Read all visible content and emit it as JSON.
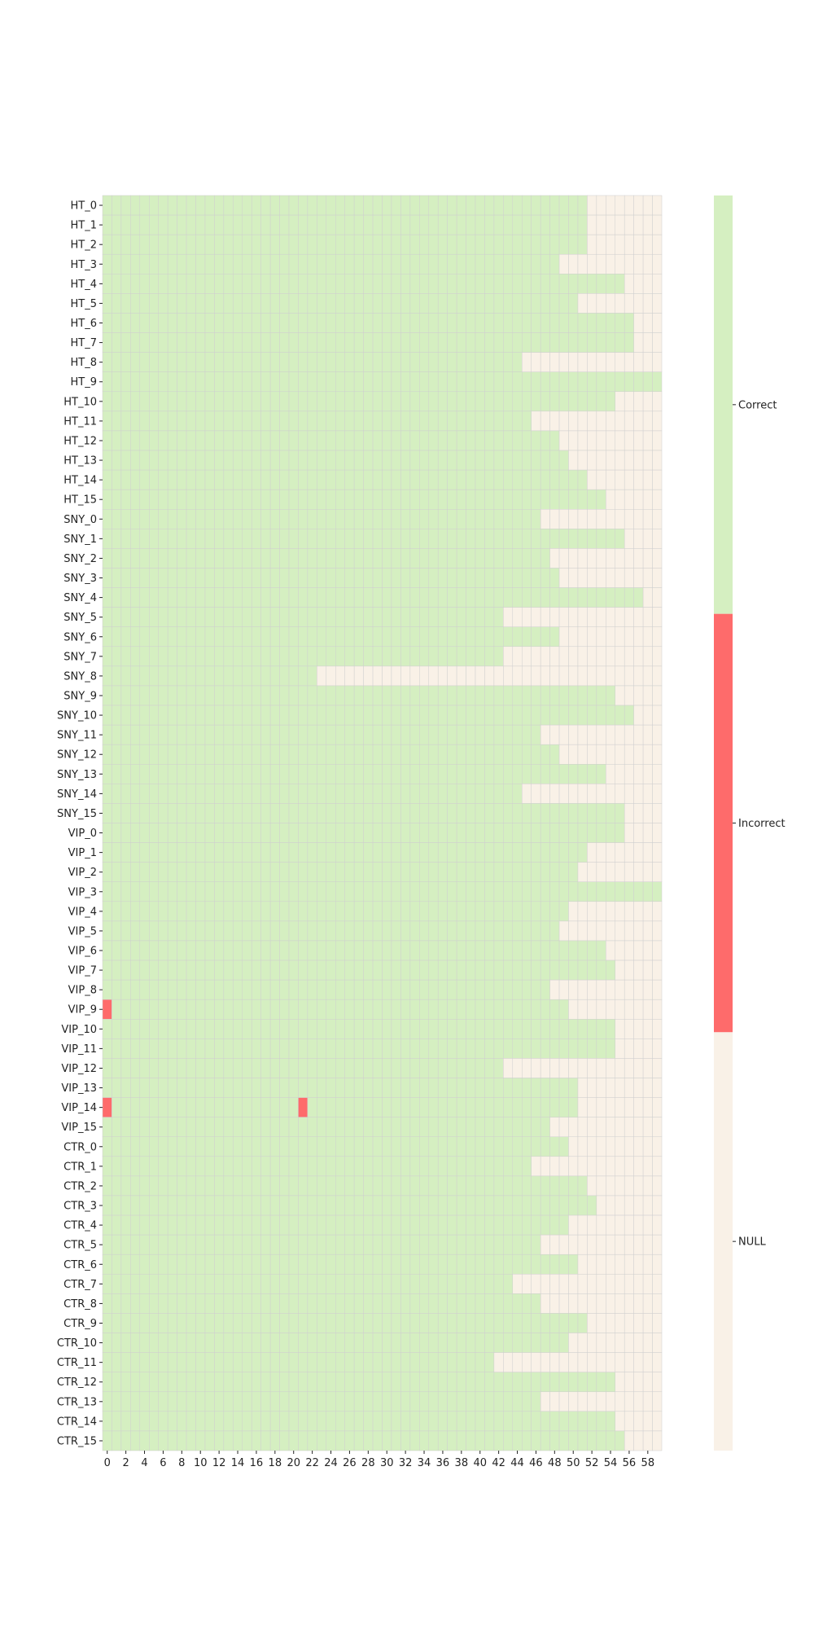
{
  "chart_data": {
    "type": "heatmap",
    "title": "",
    "xlabel": "",
    "ylabel": "",
    "x_count": 60,
    "x_tick_labels": [
      "0",
      "2",
      "4",
      "6",
      "8",
      "10",
      "12",
      "14",
      "16",
      "18",
      "20",
      "22",
      "24",
      "26",
      "28",
      "30",
      "32",
      "34",
      "36",
      "38",
      "40",
      "42",
      "44",
      "46",
      "48",
      "50",
      "52",
      "54",
      "56",
      "58"
    ],
    "rows": [
      "HT_0",
      "HT_1",
      "HT_2",
      "HT_3",
      "HT_4",
      "HT_5",
      "HT_6",
      "HT_7",
      "HT_8",
      "HT_9",
      "HT_10",
      "HT_11",
      "HT_12",
      "HT_13",
      "HT_14",
      "HT_15",
      "SNY_0",
      "SNY_1",
      "SNY_2",
      "SNY_3",
      "SNY_4",
      "SNY_5",
      "SNY_6",
      "SNY_7",
      "SNY_8",
      "SNY_9",
      "SNY_10",
      "SNY_11",
      "SNY_12",
      "SNY_13",
      "SNY_14",
      "SNY_15",
      "VIP_0",
      "VIP_1",
      "VIP_2",
      "VIP_3",
      "VIP_4",
      "VIP_5",
      "VIP_6",
      "VIP_7",
      "VIP_8",
      "VIP_9",
      "VIP_10",
      "VIP_11",
      "VIP_12",
      "VIP_13",
      "VIP_14",
      "VIP_15",
      "CTR_0",
      "CTR_1",
      "CTR_2",
      "CTR_3",
      "CTR_4",
      "CTR_5",
      "CTR_6",
      "CTR_7",
      "CTR_8",
      "CTR_9",
      "CTR_10",
      "CTR_11",
      "CTR_12",
      "CTR_13",
      "CTR_14",
      "CTR_15"
    ],
    "non_null_count": [
      52,
      52,
      52,
      49,
      56,
      51,
      57,
      57,
      45,
      60,
      55,
      46,
      49,
      50,
      52,
      54,
      47,
      56,
      48,
      49,
      58,
      43,
      49,
      43,
      23,
      55,
      57,
      47,
      49,
      54,
      45,
      56,
      56,
      52,
      51,
      60,
      50,
      49,
      54,
      55,
      48,
      50,
      55,
      55,
      43,
      51,
      51,
      48,
      50,
      46,
      52,
      53,
      50,
      47,
      51,
      44,
      47,
      52,
      50,
      42,
      55,
      47,
      55,
      56
    ],
    "incorrect_cells": [
      {
        "row": "VIP_9",
        "col": 0
      },
      {
        "row": "VIP_14",
        "col": 0
      },
      {
        "row": "VIP_14",
        "col": 21
      }
    ],
    "categories": [
      "Correct",
      "Incorrect",
      "NULL"
    ],
    "colors": {
      "Correct": "#d5efc1",
      "Incorrect": "#fe6b6b",
      "NULL": "#f9f1e7"
    },
    "grid_color": "#cfcfcf",
    "colorbar": "right"
  }
}
